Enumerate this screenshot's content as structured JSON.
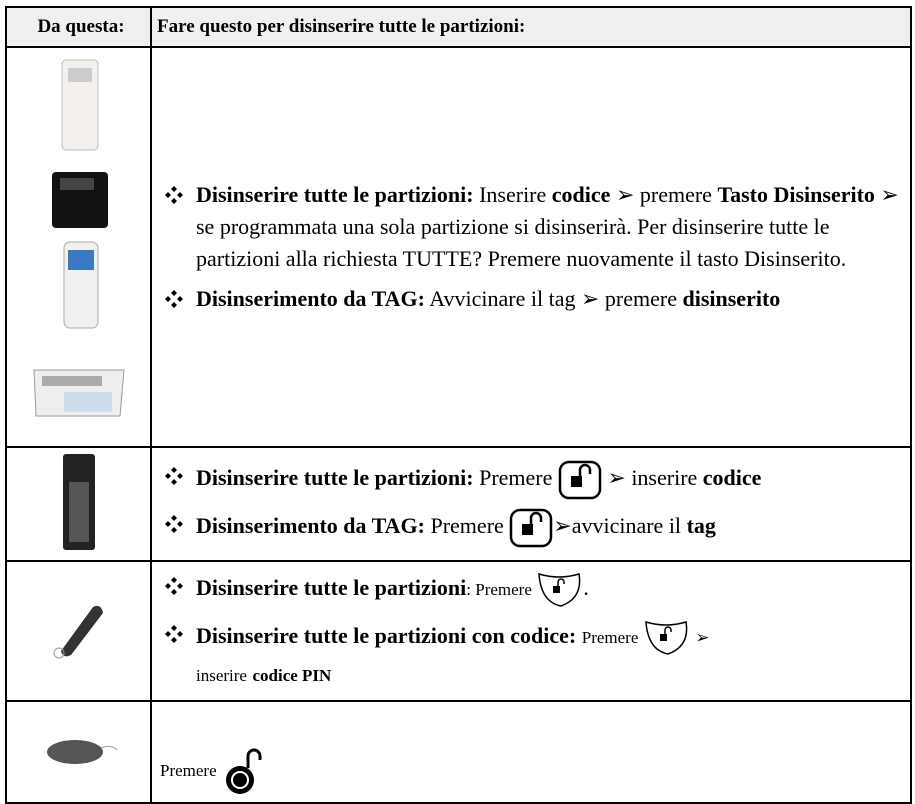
{
  "table": {
    "header": {
      "source": "Da questa:",
      "action": "Fare questo per disinserire tutte le partizioni:"
    },
    "rows": [
      {
        "bullets": [
          [
            "Disinserire tutte le partizioni:",
            "Inserire",
            "codice",
            "➢ premere",
            "Tasto Disinserito",
            "➢ se programmata una sola partizione si disinserirà. Per disinserire tutte le partizioni alla richiesta TUTTE? Premere nuovamente il tasto Disinserito."
          ],
          [
            "Disinserimento da TAG:",
            "Avvicinare il tag ➢ premere",
            "disinserito"
          ]
        ]
      },
      {
        "bullets": [
          [
            "Disinserire tutte le partizioni:",
            "Premere",
            "➢ inserire",
            "codice"
          ],
          [
            "Disinserimento da TAG:",
            "Premere",
            "➢avvicinare il",
            "tag"
          ]
        ]
      },
      {
        "bullets": [
          [
            "Disinserire tutte le partizioni",
            ": Premere",
            "."
          ],
          [
            "Disinserire tutte le partizioni con codice:",
            "Premere",
            "➢",
            "inserire",
            "codice PIN"
          ]
        ]
      },
      {
        "text": "Premere"
      }
    ]
  }
}
